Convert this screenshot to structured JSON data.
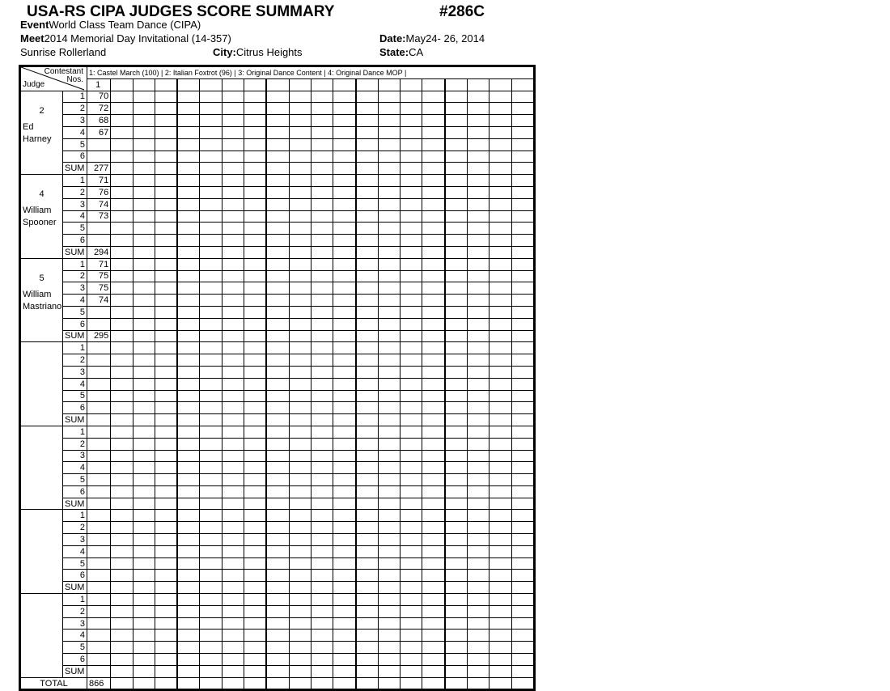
{
  "header": {
    "title": "USA-RS CIPA JUDGES SCORE SUMMARY",
    "form_code": "#286C",
    "event_label": "Event",
    "event": "World Class Team Dance  (CIPA)",
    "meet_label": "Meet",
    "meet": "2014  Memorial Day Invitational (14-357)",
    "date_label": "Date:",
    "date": "May24- 26, 2014",
    "venue": "Sunrise Rollerland",
    "city_label": "City:",
    "city": "Citrus Heights",
    "state_label": "State:",
    "state": "CA"
  },
  "table": {
    "contestant_label": "Contestant",
    "nos_label": "Nos.",
    "judge_label": "Judge",
    "dances": "1: Castel March (100) | 2: Italian Foxtrot (96) | 3: Original Dance Content | 4: Original Dance MOP |",
    "contestants": [
      "1"
    ],
    "row_labels": [
      "1",
      "2",
      "3",
      "4",
      "5",
      "6"
    ],
    "sum_label": "SUM",
    "total_label": "TOTAL",
    "totals": [
      "866"
    ],
    "judges": [
      {
        "number": "2",
        "name": [
          "Ed",
          "Harney"
        ],
        "scores": [
          [
            "70"
          ],
          [
            "72"
          ],
          [
            "68"
          ],
          [
            "67"
          ],
          [
            ""
          ],
          [
            ""
          ]
        ],
        "sums": [
          "277"
        ]
      },
      {
        "number": "4",
        "name": [
          "William",
          "Spooner"
        ],
        "scores": [
          [
            "71"
          ],
          [
            "76"
          ],
          [
            "74"
          ],
          [
            "73"
          ],
          [
            ""
          ],
          [
            ""
          ]
        ],
        "sums": [
          "294"
        ]
      },
      {
        "number": "5",
        "name": [
          "William",
          "Mastriano"
        ],
        "scores": [
          [
            "71"
          ],
          [
            "75"
          ],
          [
            "75"
          ],
          [
            "74"
          ],
          [
            ""
          ],
          [
            ""
          ]
        ],
        "sums": [
          "295"
        ]
      },
      {
        "number": "",
        "name": [],
        "scores": [
          [
            ""
          ],
          [
            ""
          ],
          [
            ""
          ],
          [
            ""
          ],
          [
            ""
          ],
          [
            ""
          ]
        ],
        "sums": [
          ""
        ]
      },
      {
        "number": "",
        "name": [],
        "scores": [
          [
            ""
          ],
          [
            ""
          ],
          [
            ""
          ],
          [
            ""
          ],
          [
            ""
          ],
          [
            ""
          ]
        ],
        "sums": [
          ""
        ]
      },
      {
        "number": "",
        "name": [],
        "scores": [
          [
            ""
          ],
          [
            ""
          ],
          [
            ""
          ],
          [
            ""
          ],
          [
            ""
          ],
          [
            ""
          ]
        ],
        "sums": [
          ""
        ]
      },
      {
        "number": "",
        "name": [],
        "scores": [
          [
            ""
          ],
          [
            ""
          ],
          [
            ""
          ],
          [
            ""
          ],
          [
            ""
          ],
          [
            ""
          ]
        ],
        "sums": [
          ""
        ]
      }
    ]
  }
}
